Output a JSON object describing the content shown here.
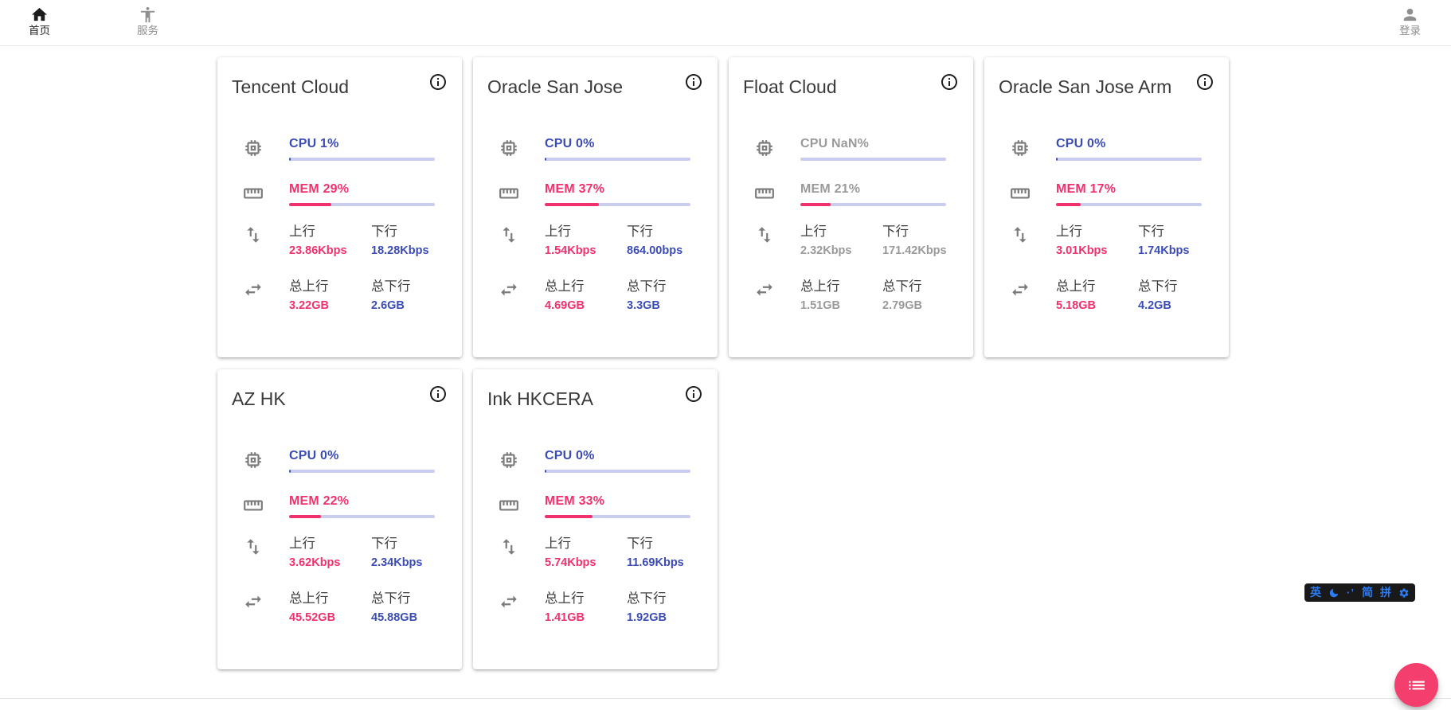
{
  "nav": {
    "home_label": "首页",
    "services_label": "服务",
    "login_label": "登录"
  },
  "labels": {
    "up": "上行",
    "down": "下行",
    "total_up": "总上行",
    "total_down": "总下行"
  },
  "servers": [
    {
      "name": "Tencent Cloud",
      "cpu_label": "CPU 1%",
      "cpu_pct": 1,
      "mem_label": "MEM 29%",
      "mem_pct": 29,
      "up": "23.86Kbps",
      "down": "18.28Kbps",
      "total_up": "3.22GB",
      "total_down": "2.6GB",
      "offline": false
    },
    {
      "name": "Oracle San Jose",
      "cpu_label": "CPU 0%",
      "cpu_pct": 0,
      "mem_label": "MEM 37%",
      "mem_pct": 37,
      "up": "1.54Kbps",
      "down": "864.00bps",
      "total_up": "4.69GB",
      "total_down": "3.3GB",
      "offline": false
    },
    {
      "name": "Float Cloud",
      "cpu_label": "CPU NaN%",
      "cpu_pct": null,
      "mem_label": "MEM 21%",
      "mem_pct": 21,
      "up": "2.32Kbps",
      "down": "171.42Kbps",
      "total_up": "1.51GB",
      "total_down": "2.79GB",
      "offline": true
    },
    {
      "name": "Oracle San Jose Arm",
      "cpu_label": "CPU 0%",
      "cpu_pct": 0,
      "mem_label": "MEM 17%",
      "mem_pct": 17,
      "up": "3.01Kbps",
      "down": "1.74Kbps",
      "total_up": "5.18GB",
      "total_down": "4.2GB",
      "offline": false
    },
    {
      "name": "AZ HK",
      "cpu_label": "CPU 0%",
      "cpu_pct": 0,
      "mem_label": "MEM 22%",
      "mem_pct": 22,
      "up": "3.62Kbps",
      "down": "2.34Kbps",
      "total_up": "45.52GB",
      "total_down": "45.88GB",
      "offline": false
    },
    {
      "name": "Ink HKCERA",
      "cpu_label": "CPU 0%",
      "cpu_pct": 0,
      "mem_label": "MEM 33%",
      "mem_pct": 33,
      "up": "5.74Kbps",
      "down": "11.69Kbps",
      "total_up": "1.41GB",
      "total_down": "1.92GB",
      "offline": false
    }
  ],
  "ime": {
    "lang": "英",
    "punct": "·’",
    "simplified": "简",
    "pinyin": "拼"
  },
  "colors": {
    "accent_blue": "#3c4cb5",
    "accent_pink": "#f0316e",
    "bar_track": "#c9cdee",
    "offline_gray": "#9a9a9a",
    "fab_pink": "#f43f6e",
    "ime_blue": "#2b7bf3"
  }
}
